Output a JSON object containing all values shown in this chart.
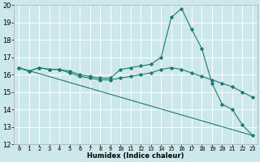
{
  "xlabel": "Humidex (Indice chaleur)",
  "xlim": [
    -0.5,
    23.5
  ],
  "ylim": [
    12,
    20
  ],
  "yticks": [
    12,
    13,
    14,
    15,
    16,
    17,
    18,
    19,
    20
  ],
  "xticks": [
    0,
    1,
    2,
    3,
    4,
    5,
    6,
    7,
    8,
    9,
    10,
    11,
    12,
    13,
    14,
    15,
    16,
    17,
    18,
    19,
    20,
    21,
    22,
    23
  ],
  "background_color": "#cde8ec",
  "grid_color": "#ffffff",
  "line_color": "#1a7a6e",
  "series1_x": [
    0,
    1,
    2,
    3,
    4,
    5,
    6,
    7,
    8,
    9,
    10,
    11,
    12,
    13,
    14,
    15,
    16,
    17,
    18,
    19,
    20,
    21,
    22,
    23
  ],
  "series1_y": [
    16.4,
    16.2,
    16.4,
    16.3,
    16.3,
    16.2,
    16.0,
    15.9,
    15.8,
    15.8,
    16.3,
    16.4,
    16.5,
    16.6,
    17.0,
    19.3,
    19.8,
    18.6,
    17.5,
    15.5,
    14.3,
    14.0,
    13.1,
    12.5
  ],
  "series2_x": [
    0,
    1,
    2,
    3,
    4,
    5,
    6,
    7,
    8,
    9,
    10,
    11,
    12,
    13,
    14,
    15,
    16,
    17,
    18,
    19,
    20,
    21,
    22,
    23
  ],
  "series2_y": [
    16.4,
    16.2,
    16.4,
    16.3,
    16.3,
    16.1,
    15.9,
    15.8,
    15.7,
    15.7,
    15.8,
    15.9,
    16.0,
    16.1,
    16.3,
    16.4,
    16.3,
    16.1,
    15.9,
    15.7,
    15.5,
    15.3,
    15.0,
    14.7
  ],
  "series3_x": [
    0,
    23
  ],
  "series3_y": [
    16.4,
    12.5
  ],
  "xlabel_fontsize": 6,
  "ytick_fontsize": 6,
  "xtick_fontsize": 5
}
